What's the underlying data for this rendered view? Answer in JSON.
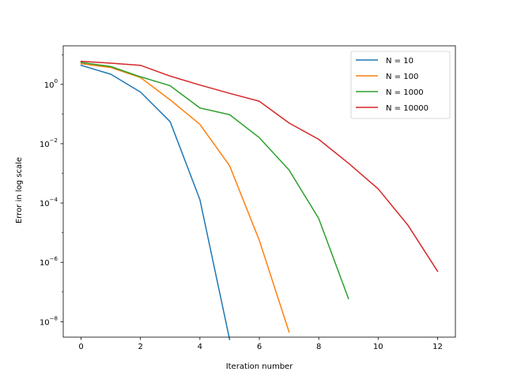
{
  "chart_data": {
    "type": "line",
    "xlabel": "Iteration number",
    "ylabel": "Error in log scale",
    "xscale": "linear",
    "yscale": "log",
    "xlim": [
      -0.6,
      12.6
    ],
    "ylim": [
      3e-09,
      20
    ],
    "x_ticks": [
      0,
      2,
      4,
      6,
      8,
      10,
      12
    ],
    "y_ticks": [
      {
        "value": 1,
        "base": "10",
        "exp": "0"
      },
      {
        "value": 0.01,
        "base": "10",
        "exp": "−2"
      },
      {
        "value": 0.0001,
        "base": "10",
        "exp": "−4"
      },
      {
        "value": 1e-06,
        "base": "10",
        "exp": "−6"
      },
      {
        "value": 1e-08,
        "base": "10",
        "exp": "−8"
      }
    ],
    "grid": false,
    "legend_position": "top-right",
    "series": [
      {
        "name": "N = 10",
        "color": "#1f77b4",
        "x": [
          0,
          1,
          2,
          3,
          4,
          5
        ],
        "y": [
          4.4,
          2.2,
          0.55,
          0.055,
          0.00013,
          2.5e-09
        ]
      },
      {
        "name": "N = 100",
        "color": "#ff7f0e",
        "x": [
          0,
          1,
          2,
          3,
          4,
          5,
          6,
          7
        ],
        "y": [
          5.0,
          3.7,
          1.7,
          0.3,
          0.045,
          0.0018,
          5.5e-06,
          4.5e-09
        ]
      },
      {
        "name": "N = 1000",
        "color": "#2ca02c",
        "x": [
          0,
          1,
          2,
          3,
          4,
          5,
          6,
          7,
          8,
          9
        ],
        "y": [
          5.5,
          4.0,
          1.8,
          0.9,
          0.16,
          0.095,
          0.016,
          0.0013,
          3e-05,
          6e-08
        ]
      },
      {
        "name": "N = 10000",
        "color": "#d62728",
        "x": [
          0,
          1,
          2,
          3,
          4,
          5,
          6,
          7,
          8,
          9,
          10,
          11,
          12
        ],
        "y": [
          6.0,
          5.2,
          4.4,
          1.9,
          0.95,
          0.5,
          0.27,
          0.05,
          0.014,
          0.0022,
          0.0003,
          1.8e-05,
          5e-07
        ]
      }
    ]
  }
}
